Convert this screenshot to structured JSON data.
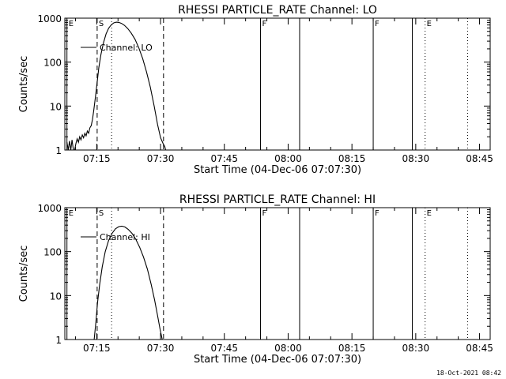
{
  "footer_timestamp": "18-Oct-2021 08:42",
  "chart_data": [
    {
      "type": "line",
      "title": "RHESSI PARTICLE_RATE Channel: LO",
      "xlabel": "Start Time (04-Dec-06 07:07:30)",
      "ylabel": "Counts/sec",
      "yscale": "log",
      "ylim": [
        1,
        1000
      ],
      "xlim": [
        427.5,
        527.5
      ],
      "x_units": "minutes after 00:00 UT",
      "x_ticks": [
        435,
        450,
        465,
        480,
        495,
        510,
        525
      ],
      "x_tick_labels": [
        "07:15",
        "07:30",
        "07:45",
        "08:00",
        "08:15",
        "08:30",
        "08:45"
      ],
      "y_ticks": [
        1,
        10,
        100,
        1000
      ],
      "y_tick_labels": [
        "1",
        "10",
        "100",
        "1000"
      ],
      "legend": {
        "position": "top-left",
        "entries": [
          "Channel: LO"
        ]
      },
      "markers": [
        {
          "x": 428.0,
          "style": "solid",
          "label": "E"
        },
        {
          "x": 435.1,
          "style": "dashed",
          "label": "S"
        },
        {
          "x": 438.5,
          "style": "dotted",
          "label": ""
        },
        {
          "x": 450.7,
          "style": "dashed",
          "label": ""
        },
        {
          "x": 473.5,
          "style": "solid",
          "label": "F"
        },
        {
          "x": 482.7,
          "style": "solid",
          "label": ""
        },
        {
          "x": 500.0,
          "style": "solid",
          "label": "F"
        },
        {
          "x": 509.2,
          "style": "solid",
          "label": ""
        },
        {
          "x": 512.2,
          "style": "dotted",
          "label": "E"
        },
        {
          "x": 522.2,
          "style": "dotted",
          "label": ""
        }
      ],
      "series": [
        {
          "name": "Channel: LO",
          "points": [
            [
              428.0,
              1.5
            ],
            [
              428.3,
              1.0
            ],
            [
              428.6,
              1.6
            ],
            [
              428.9,
              1.0
            ],
            [
              429.2,
              1.7
            ],
            [
              429.5,
              1.0
            ],
            [
              429.8,
              1.0
            ],
            [
              430.1,
              1.4
            ],
            [
              430.4,
              1.8
            ],
            [
              430.7,
              1.5
            ],
            [
              431.0,
              2.0
            ],
            [
              431.3,
              1.7
            ],
            [
              431.6,
              2.2
            ],
            [
              431.9,
              1.9
            ],
            [
              432.2,
              2.4
            ],
            [
              432.5,
              2.1
            ],
            [
              432.8,
              2.7
            ],
            [
              433.1,
              2.4
            ],
            [
              433.4,
              3.2
            ],
            [
              433.7,
              3.6
            ],
            [
              434.0,
              5
            ],
            [
              434.3,
              8
            ],
            [
              434.7,
              16
            ],
            [
              435.1,
              35
            ],
            [
              435.5,
              75
            ],
            [
              436.0,
              150
            ],
            [
              436.6,
              280
            ],
            [
              437.2,
              440
            ],
            [
              437.8,
              590
            ],
            [
              438.4,
              700
            ],
            [
              439.0,
              780
            ],
            [
              439.6,
              810
            ],
            [
              440.2,
              800
            ],
            [
              440.8,
              760
            ],
            [
              441.5,
              690
            ],
            [
              442.3,
              580
            ],
            [
              443.1,
              460
            ],
            [
              444.0,
              330
            ],
            [
              444.9,
              210
            ],
            [
              445.8,
              120
            ],
            [
              446.7,
              60
            ],
            [
              447.6,
              27
            ],
            [
              448.5,
              10
            ],
            [
              449.3,
              3.8
            ],
            [
              450.0,
              1.9
            ],
            [
              450.6,
              1.4
            ],
            [
              451.0,
              1.2
            ],
            [
              451.2,
              1.0
            ]
          ]
        }
      ]
    },
    {
      "type": "line",
      "title": "RHESSI PARTICLE_RATE Channel: HI",
      "xlabel": "Start Time (04-Dec-06 07:07:30)",
      "ylabel": "Counts/sec",
      "yscale": "log",
      "ylim": [
        1,
        1000
      ],
      "xlim": [
        427.5,
        527.5
      ],
      "x_units": "minutes after 00:00 UT",
      "x_ticks": [
        435,
        450,
        465,
        480,
        495,
        510,
        525
      ],
      "x_tick_labels": [
        "07:15",
        "07:30",
        "07:45",
        "08:00",
        "08:15",
        "08:30",
        "08:45"
      ],
      "y_ticks": [
        1,
        10,
        100,
        1000
      ],
      "y_tick_labels": [
        "1",
        "10",
        "100",
        "1000"
      ],
      "legend": {
        "position": "top-left",
        "entries": [
          "Channel: HI"
        ]
      },
      "markers": [
        {
          "x": 428.0,
          "style": "solid",
          "label": "E"
        },
        {
          "x": 435.1,
          "style": "dashed",
          "label": "S"
        },
        {
          "x": 438.5,
          "style": "dotted",
          "label": ""
        },
        {
          "x": 450.7,
          "style": "dashed",
          "label": ""
        },
        {
          "x": 473.5,
          "style": "solid",
          "label": "F"
        },
        {
          "x": 482.7,
          "style": "solid",
          "label": ""
        },
        {
          "x": 500.0,
          "style": "solid",
          "label": "F"
        },
        {
          "x": 509.2,
          "style": "solid",
          "label": ""
        },
        {
          "x": 512.2,
          "style": "dotted",
          "label": "E"
        },
        {
          "x": 522.2,
          "style": "dotted",
          "label": ""
        }
      ],
      "series": [
        {
          "name": "Channel: HI",
          "points": [
            [
              434.4,
              1.0
            ],
            [
              434.8,
              2.5
            ],
            [
              435.2,
              7
            ],
            [
              435.7,
              18
            ],
            [
              436.3,
              45
            ],
            [
              437.0,
              100
            ],
            [
              437.8,
              180
            ],
            [
              438.6,
              260
            ],
            [
              439.4,
              330
            ],
            [
              440.2,
              370
            ],
            [
              440.9,
              380
            ],
            [
              441.6,
              365
            ],
            [
              442.4,
              320
            ],
            [
              443.3,
              260
            ],
            [
              444.2,
              190
            ],
            [
              445.1,
              125
            ],
            [
              446.0,
              75
            ],
            [
              446.9,
              40
            ],
            [
              447.8,
              18
            ],
            [
              448.6,
              8
            ],
            [
              449.3,
              3.5
            ],
            [
              449.9,
              1.7
            ],
            [
              450.4,
              1.0
            ]
          ]
        }
      ]
    }
  ]
}
